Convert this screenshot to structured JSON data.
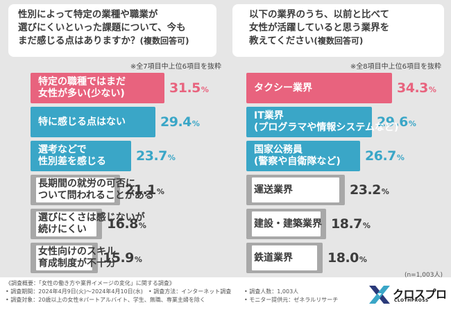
{
  "chart_data": [
    {
      "type": "bar",
      "orientation": "horizontal",
      "title_lines": [
        "性別によって特定の業種や職業が",
        "選びにくいといった課題について、今も",
        "まだ感じる点はありますか？"
      ],
      "title_note": "(複数回答可)",
      "subnote": "※全7項目中上位6項目を抜粋",
      "unit": "%",
      "xlim": [
        0,
        40
      ],
      "items": [
        {
          "label_lines": [
            "特定の職種ではまだ",
            "女性が多い(少ない)"
          ],
          "value": 31.5,
          "style": "highlight"
        },
        {
          "label_lines": [
            "特に感じる点はない"
          ],
          "value": 29.4,
          "style": "accent"
        },
        {
          "label_lines": [
            "選考などで",
            "性別差を感じる"
          ],
          "value": 23.7,
          "style": "accent"
        },
        {
          "label_lines": [
            "長期間の就労の可否に",
            "ついて問われることがある"
          ],
          "value": 21.1,
          "style": "plain"
        },
        {
          "label_lines": [
            "選びにくさは感じないが",
            "続けにくい"
          ],
          "value": 16.8,
          "style": "plain"
        },
        {
          "label_lines": [
            "女性向けのスキル",
            "育成制度が不十分"
          ],
          "value": 15.9,
          "style": "plain"
        }
      ]
    },
    {
      "type": "bar",
      "orientation": "horizontal",
      "title_lines": [
        "以下の業界のうち、以前と比べて",
        "女性が活躍していると思う業界を",
        "教えてください"
      ],
      "title_note": "(複数回答可)",
      "subnote": "※全8項目中上位6項目を抜粋",
      "unit": "%",
      "xlim": [
        0,
        40
      ],
      "items": [
        {
          "label_lines": [
            "タクシー業界"
          ],
          "value": 34.3,
          "style": "highlight"
        },
        {
          "label_lines": [
            "IT業界",
            "(プログラマや情報システムなど)"
          ],
          "value": 29.6,
          "style": "accent"
        },
        {
          "label_lines": [
            "国家公務員",
            "(警察や自衛隊など)"
          ],
          "value": 26.7,
          "style": "accent"
        },
        {
          "label_lines": [
            "運送業界"
          ],
          "value": 23.2,
          "style": "plain"
        },
        {
          "label_lines": [
            "建設・建築業界"
          ],
          "value": 18.7,
          "style": "plain"
        },
        {
          "label_lines": [
            "鉄道業界"
          ],
          "value": 18.0,
          "style": "plain"
        }
      ]
    }
  ],
  "sample_size": "(n=1,003人)",
  "footer": {
    "overview": "《調査概要：「女性の働き方や業界イメージの変化」に関する調査》",
    "period": "• 調査期間：2024年4月9日(火)～2024年4月10日(水)",
    "method": "• 調査方法：インターネット調査",
    "respondents": "• 調査人数：1,003人",
    "target": "• 調査対象：20歳以上の女性※パートアルバイト、学生、無職、専業主婦を除く",
    "provider": "• モニター提供元：ゼネラルリサーチ"
  },
  "logo": {
    "name": "クロスプロ",
    "name_en": "CLOTHPROSS"
  },
  "colors": {
    "highlight": "#e8637e",
    "accent": "#3aa6c7",
    "plain": "#a8a8a8",
    "background": "#e6e6e6"
  }
}
